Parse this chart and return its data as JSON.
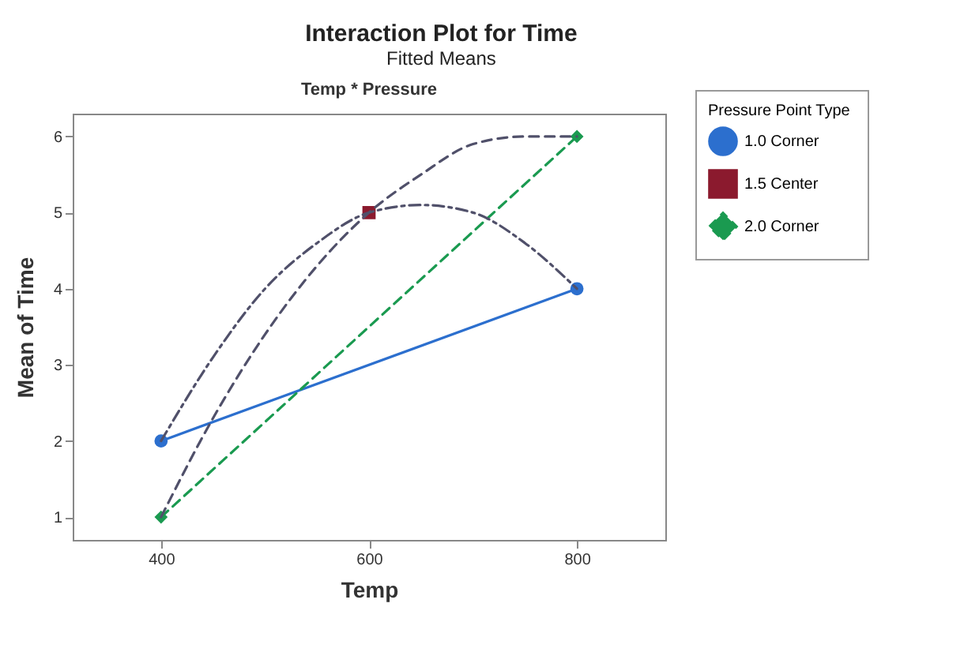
{
  "chart_data": {
    "type": "line",
    "title": "Interaction Plot for Time",
    "subtitle": "Fitted Means",
    "xlabel": "Temp",
    "ylabel": "Mean of Time",
    "legend_title": "Pressure  Point Type",
    "annotations": [
      "Temp * Pressure"
    ],
    "x": [
      400,
      800
    ],
    "series": [
      {
        "name": "1.0 Corner",
        "color": "#2c6fce",
        "values": [
          2,
          4
        ],
        "marker": "circle",
        "line_style": "solid"
      },
      {
        "name": "1.5 Center",
        "color": "#8b1a2e",
        "x": [
          600
        ],
        "values": [
          5
        ],
        "marker": "square",
        "line_style": "solid"
      },
      {
        "name": "2.0 Corner",
        "color": "#1a9a50",
        "values": [
          1,
          6
        ],
        "marker": "diamond",
        "line_style": "dashed"
      },
      {
        "color": "#50506a",
        "x": [
          400,
          450,
          500,
          550,
          600,
          650,
          700,
          750,
          800
        ],
        "values": [
          2,
          3.1,
          4,
          4.6,
          5,
          5.1,
          5,
          4.6,
          4
        ],
        "marker": "none",
        "line_style": "dotted"
      },
      {
        "color": "#50506a",
        "x": [
          400,
          450,
          500,
          550,
          600,
          650,
          700,
          750,
          800
        ],
        "values": [
          1,
          2.3,
          3.4,
          4.3,
          5,
          5.5,
          5.9,
          6,
          6
        ],
        "marker": "none",
        "line_style": "dashed"
      }
    ],
    "xlim": [
      315,
      885
    ],
    "ylim": [
      0.7,
      6.3
    ],
    "xticks": [
      400,
      600,
      800
    ],
    "yticks": [
      1,
      2,
      3,
      4,
      5,
      6
    ],
    "grid": false,
    "legend": "top right"
  }
}
